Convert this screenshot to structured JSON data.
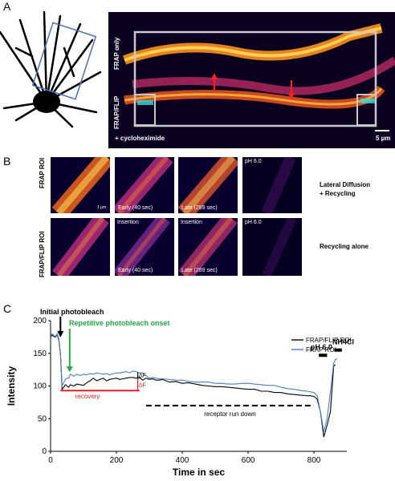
{
  "panel_labels": {
    "a": "A",
    "b": "B",
    "c": "C"
  },
  "panel_a": {
    "row_top": "FRAP only",
    "row_bottom": "FRAP/FLIP",
    "treatment": "+ cycloheximide",
    "scale_bar": "5 µm"
  },
  "panel_b": {
    "row1_label": "FRAP ROI",
    "row2_label": "FRAP/FLIP ROI",
    "row1_desc": "Lateral Diffusion\n+ Recycling",
    "row2_desc": "Recycling alone",
    "scale": "1 µm",
    "ph_label": "pH 6.0",
    "insertion_label": "Insertion",
    "early_label": "Early (40 sec)",
    "late_label": "Late (289 sec)"
  },
  "colors": {
    "black_series": "#000000",
    "blue_series": "#4a7fc1",
    "recovery": "#e02020",
    "annotation_green": "#22aa44"
  },
  "chart_data": {
    "type": "line",
    "xlabel": "Time in sec",
    "ylabel": "Intensity",
    "xlim": [
      0,
      900
    ],
    "ylim": [
      0,
      200
    ],
    "xticks": [
      0,
      200,
      400,
      600,
      800
    ],
    "yticks": [
      0,
      50,
      100,
      150,
      200
    ],
    "legend_position": "top-right",
    "series": [
      {
        "name": "FRAP/FLIP ROI",
        "color": "#000000",
        "x": [
          0,
          5,
          10,
          15,
          20,
          25,
          30,
          35,
          40,
          45,
          50,
          55,
          60,
          70,
          80,
          90,
          100,
          110,
          120,
          130,
          140,
          150,
          160,
          170,
          180,
          190,
          200,
          210,
          220,
          230,
          240,
          250,
          260,
          270,
          280,
          290,
          300,
          310,
          320,
          330,
          340,
          360,
          380,
          400,
          420,
          440,
          460,
          480,
          500,
          520,
          540,
          560,
          580,
          600,
          620,
          640,
          660,
          680,
          700,
          720,
          740,
          760,
          780,
          790,
          800,
          810,
          820,
          830,
          840,
          850,
          860,
          865
        ],
        "y": [
          175,
          178,
          176,
          175,
          179,
          170,
          150,
          95,
          98,
          102,
          100,
          98,
          102,
          100,
          103,
          102,
          101,
          105,
          108,
          112,
          108,
          110,
          112,
          108,
          110,
          111,
          112,
          110,
          111,
          112,
          113,
          113,
          112,
          113,
          109,
          112,
          110,
          111,
          109,
          109,
          110,
          106,
          107,
          104,
          105,
          103,
          101,
          100,
          99,
          99,
          98,
          97,
          96,
          95,
          95,
          92,
          92,
          90,
          90,
          88,
          87,
          86,
          85,
          85,
          84,
          80,
          60,
          22,
          40,
          60,
          130,
          133
        ]
      },
      {
        "name": "FRAP ROI",
        "color": "#4a7fc1",
        "x": [
          0,
          5,
          10,
          15,
          20,
          25,
          30,
          35,
          40,
          45,
          50,
          55,
          60,
          70,
          80,
          90,
          100,
          110,
          120,
          130,
          140,
          150,
          160,
          170,
          180,
          190,
          200,
          210,
          220,
          230,
          240,
          250,
          260,
          270,
          280,
          290,
          300,
          310,
          320,
          330,
          340,
          360,
          380,
          400,
          420,
          440,
          460,
          480,
          500,
          520,
          540,
          560,
          580,
          600,
          620,
          640,
          660,
          680,
          700,
          720,
          740,
          760,
          780,
          790,
          800,
          810,
          820,
          830,
          840,
          850,
          860,
          865,
          870
        ],
        "y": [
          176,
          180,
          177,
          176,
          180,
          172,
          150,
          100,
          105,
          110,
          112,
          112,
          118,
          115,
          118,
          116,
          118,
          117,
          119,
          118,
          120,
          119,
          118,
          119,
          117,
          119,
          120,
          120,
          121,
          122,
          120,
          123,
          122,
          120,
          120,
          116,
          112,
          113,
          112,
          111,
          111,
          110,
          109,
          109,
          107,
          106,
          106,
          106,
          104,
          104,
          103,
          103,
          104,
          104,
          103,
          102,
          101,
          101,
          98,
          96,
          95,
          93,
          92,
          91,
          90,
          85,
          60,
          30,
          50,
          90,
          135,
          140,
          142
        ]
      }
    ],
    "annotations": {
      "initial": "Initial photobleach",
      "repetitive": "Repetitive photobleach onset",
      "recovery": "recovery",
      "rundown": "receptor run down",
      "delta_ff": "ΔF",
      "delta_ff_sub": "ff",
      "delta_ffl": "ΔF",
      "delta_ffl_sub": "rec",
      "ph": "pH 6.0",
      "nh4": "NH4Cl"
    }
  }
}
